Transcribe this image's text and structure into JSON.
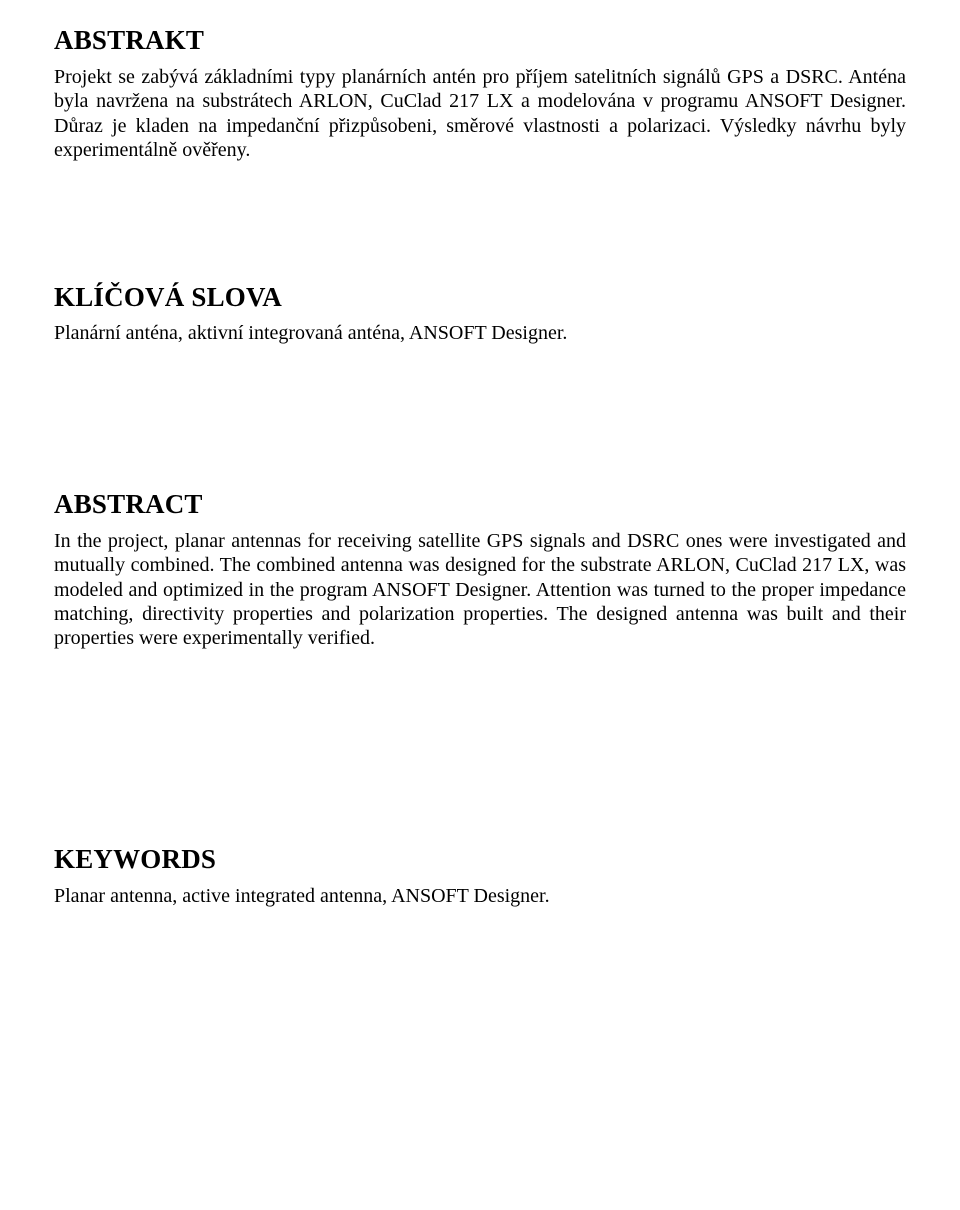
{
  "sections": {
    "abstrakt": {
      "title": "ABSTRAKT",
      "text": "Projekt se zabývá základními typy planárních antén pro příjem satelitních signálů GPS a DSRC. Anténa byla navržena na substrátech ARLON, CuClad 217 LX a modelována v programu ANSOFT Designer. Důraz je kladen na impedanční přizpůsobeni, směrové vlastnosti a polarizaci. Výsledky návrhu byly experimentálně ověřeny."
    },
    "klicova": {
      "title": "KLÍČOVÁ SLOVA",
      "text": "Planární anténa, aktivní integrovaná anténa, ANSOFT Designer."
    },
    "abstract_en": {
      "title": "ABSTRACT",
      "text": "In the project, planar antennas for receiving satellite GPS signals and DSRC ones were investigated and mutually combined. The combined antenna was designed for the substrate ARLON, CuClad 217 LX, was modeled and optimized in the program ANSOFT Designer. Attention was turned to the proper impedance matching, directivity properties and polarization properties. The designed antenna was built and their properties were experimentally verified."
    },
    "keywords": {
      "title": "KEYWORDS",
      "text": "Planar antenna, active integrated antenna, ANSOFT Designer."
    }
  }
}
